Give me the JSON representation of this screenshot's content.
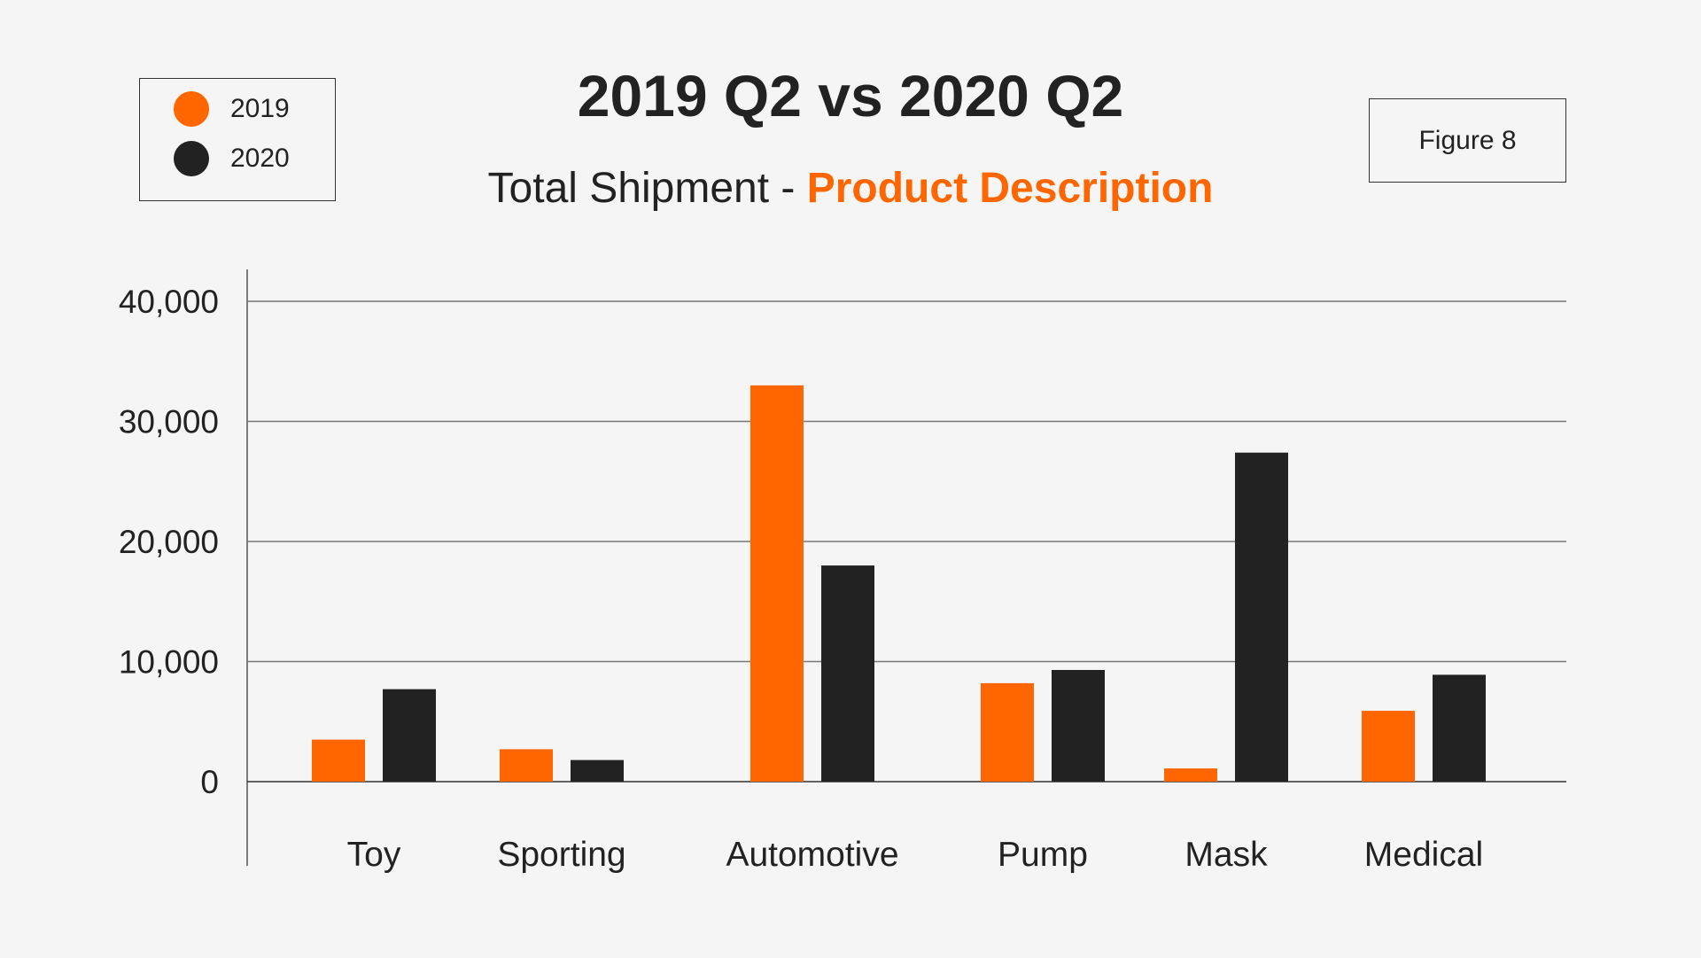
{
  "chart_data": {
    "type": "bar",
    "title": "2019 Q2 vs 2020 Q2",
    "subtitle_prefix": "Total Shipment - ",
    "subtitle_highlight": "Product Description",
    "figure_label": "Figure 8",
    "categories": [
      "Toy",
      "Sporting",
      "Automotive",
      "Pump",
      "Mask",
      "Medical"
    ],
    "series": [
      {
        "name": "2019",
        "color": "#ff6600",
        "values": [
          3500,
          2700,
          33000,
          8200,
          1100,
          5900
        ]
      },
      {
        "name": "2020",
        "color": "#222222",
        "values": [
          7700,
          1800,
          18000,
          9300,
          27400,
          8900
        ]
      }
    ],
    "yticks": [
      0,
      10000,
      20000,
      30000,
      40000
    ],
    "ytick_labels": [
      "0",
      "10,000",
      "20,000",
      "30,000",
      "40,000"
    ],
    "ylim": [
      0,
      40000
    ],
    "xlabel": "",
    "ylabel": "",
    "grid": true,
    "legend_position": "top-left"
  }
}
